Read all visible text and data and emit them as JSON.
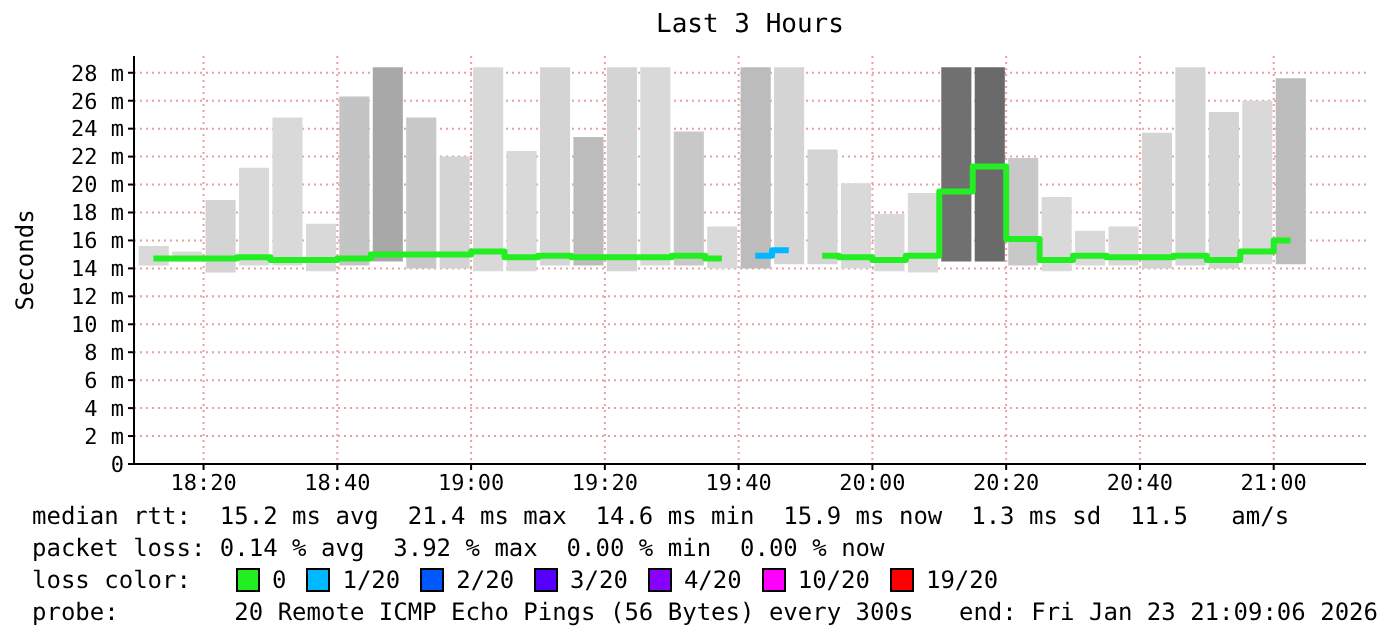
{
  "chart_data": {
    "type": "step",
    "title": "Last 3 Hours",
    "ylabel": "Seconds",
    "legend_title": "loss color:",
    "legend": "bottom",
    "grid": true,
    "x": [
      18.208333,
      18.291667,
      18.375,
      18.458333,
      18.541667,
      18.625,
      18.708333,
      18.791667,
      18.875,
      18.958333,
      19.041667,
      19.125,
      19.208333,
      19.291667,
      19.375,
      19.458333,
      19.541667,
      19.625,
      19.708333,
      19.791667,
      19.875,
      19.958333,
      20.041667,
      20.125,
      20.208333,
      20.291667,
      20.375,
      20.458333,
      20.541667,
      20.625,
      20.708333,
      20.791667,
      20.875,
      20.958333,
      21.041667
    ],
    "xlim": [
      18.16,
      21.23
    ],
    "xticks": [
      {
        "value": 18.333333,
        "label": "18:20"
      },
      {
        "value": 18.666667,
        "label": "18:40"
      },
      {
        "value": 19,
        "label": "19:00"
      },
      {
        "value": 19.333333,
        "label": "19:20"
      },
      {
        "value": 19.666667,
        "label": "19:40"
      },
      {
        "value": 20,
        "label": "20:00"
      },
      {
        "value": 20.333333,
        "label": "20:20"
      },
      {
        "value": 20.666667,
        "label": "20:40"
      },
      {
        "value": 21,
        "label": "21:00"
      }
    ],
    "ylim": [
      0,
      29.2
    ],
    "yticks": [
      0,
      {
        "value": 2,
        "label": "2 m"
      },
      {
        "value": 4,
        "label": "4 m"
      },
      {
        "value": 6,
        "label": "6 m"
      },
      {
        "value": 8,
        "label": "8 m"
      },
      {
        "value": 10,
        "label": "10 m"
      },
      {
        "value": 12,
        "label": "12 m"
      },
      {
        "value": 14,
        "label": "14 m"
      },
      {
        "value": 16,
        "label": "16 m"
      },
      {
        "value": 18,
        "label": "18 m"
      },
      {
        "value": 20,
        "label": "20 m"
      },
      {
        "value": 22,
        "label": "22 m"
      },
      {
        "value": 24,
        "label": "24 m"
      },
      {
        "value": 26,
        "label": "26 m"
      },
      {
        "value": 28,
        "label": "28 m"
      }
    ],
    "series": [
      {
        "type": "bar",
        "color": "#d9d9d9",
        "base": [
          14.2,
          14.5,
          13.7,
          14.2,
          14.2,
          13.8,
          14.2,
          14.5,
          14.0,
          14.0,
          13.8,
          13.8,
          14.2,
          14.2,
          13.8,
          14.2,
          14.2,
          14.0,
          14.0,
          14.3,
          14.3,
          14.0,
          13.8,
          13.7,
          14.5,
          14.5,
          14.2,
          13.8,
          14.2,
          14.2,
          14.0,
          14.2,
          14.0,
          14.3,
          14.3
        ],
        "values": [
          1.4,
          0.7,
          5.2,
          7.0,
          10.6,
          3.4,
          12.1,
          13.9,
          10.8,
          8.0,
          14.6,
          8.6,
          14.2,
          9.2,
          14.6,
          14.2,
          9.6,
          3.0,
          14.4,
          14.1,
          8.2,
          6.1,
          4.1,
          5.7,
          13.9,
          13.9,
          7.7,
          5.3,
          2.5,
          2.8,
          9.7,
          14.2,
          11.2,
          11.7,
          13.3
        ],
        "colors": [
          "#d9d9d9",
          "#d9d9d9",
          "#d4d4d4",
          "#d9d9d9",
          "#d9d9d9",
          "#d9d9d9",
          "#c4c4c4",
          "#a8a8a8",
          "#c8c8c8",
          "#d4d4d4",
          "#d9d9d9",
          "#d9d9d9",
          "#d4d4d4",
          "#bcbcbc",
          "#d4d4d4",
          "#d9d9d9",
          "#c8c8c8",
          "#d9d9d9",
          "#bcbcbc",
          "#d4d4d4",
          "#d4d4d4",
          "#d9d9d9",
          "#d9d9d9",
          "#d9d9d9",
          "#707070",
          "#6a6a6a",
          "#c8c8c8",
          "#d9d9d9",
          "#d9d9d9",
          "#d9d9d9",
          "#d4d4d4",
          "#d4d4d4",
          "#d4d4d4",
          "#d9d9d9",
          "#bcbcbc"
        ]
      },
      {
        "name": "0",
        "color": "#22ee22",
        "values": [
          14.7,
          14.7,
          14.7,
          14.8,
          14.6,
          14.6,
          14.7,
          15.0,
          15.0,
          15.0,
          15.2,
          14.8,
          14.9,
          14.8,
          14.8,
          14.8,
          14.9,
          14.7,
          null,
          null,
          14.9,
          14.8,
          14.6,
          14.9,
          19.5,
          21.3,
          16.1,
          14.6,
          14.9,
          14.8,
          14.8,
          14.9,
          14.6,
          15.2,
          16.0
        ]
      },
      {
        "name": "1/20",
        "color": "#00b8ff",
        "values": [
          null,
          null,
          null,
          null,
          null,
          null,
          null,
          null,
          null,
          null,
          null,
          null,
          null,
          null,
          null,
          null,
          null,
          null,
          14.9,
          15.3,
          null,
          null,
          null,
          null,
          null,
          null,
          null,
          null,
          null,
          null,
          null,
          null,
          null,
          null,
          null
        ]
      },
      {
        "name": "2/20",
        "color": "#0059ff",
        "values": [
          null,
          null,
          null,
          null,
          null,
          null,
          null,
          null,
          null,
          null,
          null,
          null,
          null,
          null,
          null,
          null,
          null,
          null,
          null,
          null,
          null,
          null,
          null,
          null,
          null,
          null,
          null,
          null,
          null,
          null,
          null,
          null,
          null,
          null,
          null
        ]
      },
      {
        "name": "3/20",
        "color": "#5500ff",
        "values": [
          null,
          null,
          null,
          null,
          null,
          null,
          null,
          null,
          null,
          null,
          null,
          null,
          null,
          null,
          null,
          null,
          null,
          null,
          null,
          null,
          null,
          null,
          null,
          null,
          null,
          null,
          null,
          null,
          null,
          null,
          null,
          null,
          null,
          null,
          null
        ]
      },
      {
        "name": "4/20",
        "color": "#8a00ff",
        "values": [
          null,
          null,
          null,
          null,
          null,
          null,
          null,
          null,
          null,
          null,
          null,
          null,
          null,
          null,
          null,
          null,
          null,
          null,
          null,
          null,
          null,
          null,
          null,
          null,
          null,
          null,
          null,
          null,
          null,
          null,
          null,
          null,
          null,
          null,
          null
        ]
      },
      {
        "name": "10/20",
        "color": "#ff00ff",
        "values": [
          null,
          null,
          null,
          null,
          null,
          null,
          null,
          null,
          null,
          null,
          null,
          null,
          null,
          null,
          null,
          null,
          null,
          null,
          null,
          null,
          null,
          null,
          null,
          null,
          null,
          null,
          null,
          null,
          null,
          null,
          null,
          null,
          null,
          null,
          null
        ]
      },
      {
        "name": "19/20",
        "color": "#ff0000",
        "values": [
          null,
          null,
          null,
          null,
          null,
          null,
          null,
          null,
          null,
          null,
          null,
          null,
          null,
          null,
          null,
          null,
          null,
          null,
          null,
          null,
          null,
          null,
          null,
          null,
          null,
          null,
          null,
          null,
          null,
          null,
          null,
          null,
          null,
          null,
          null
        ]
      }
    ],
    "annotations": [
      "median rtt:  15.2 ms avg  21.4 ms max  14.6 ms min  15.9 ms now  1.3 ms sd  11.5   am/s",
      "packet loss: 0.14 % avg  3.92 % max  0.00 % min  0.00 % now",
      "probe:        20 Remote ICMP Echo Pings (56 Bytes) every 300s",
      "end: Fri Jan 23 21:09:06 2026"
    ]
  }
}
